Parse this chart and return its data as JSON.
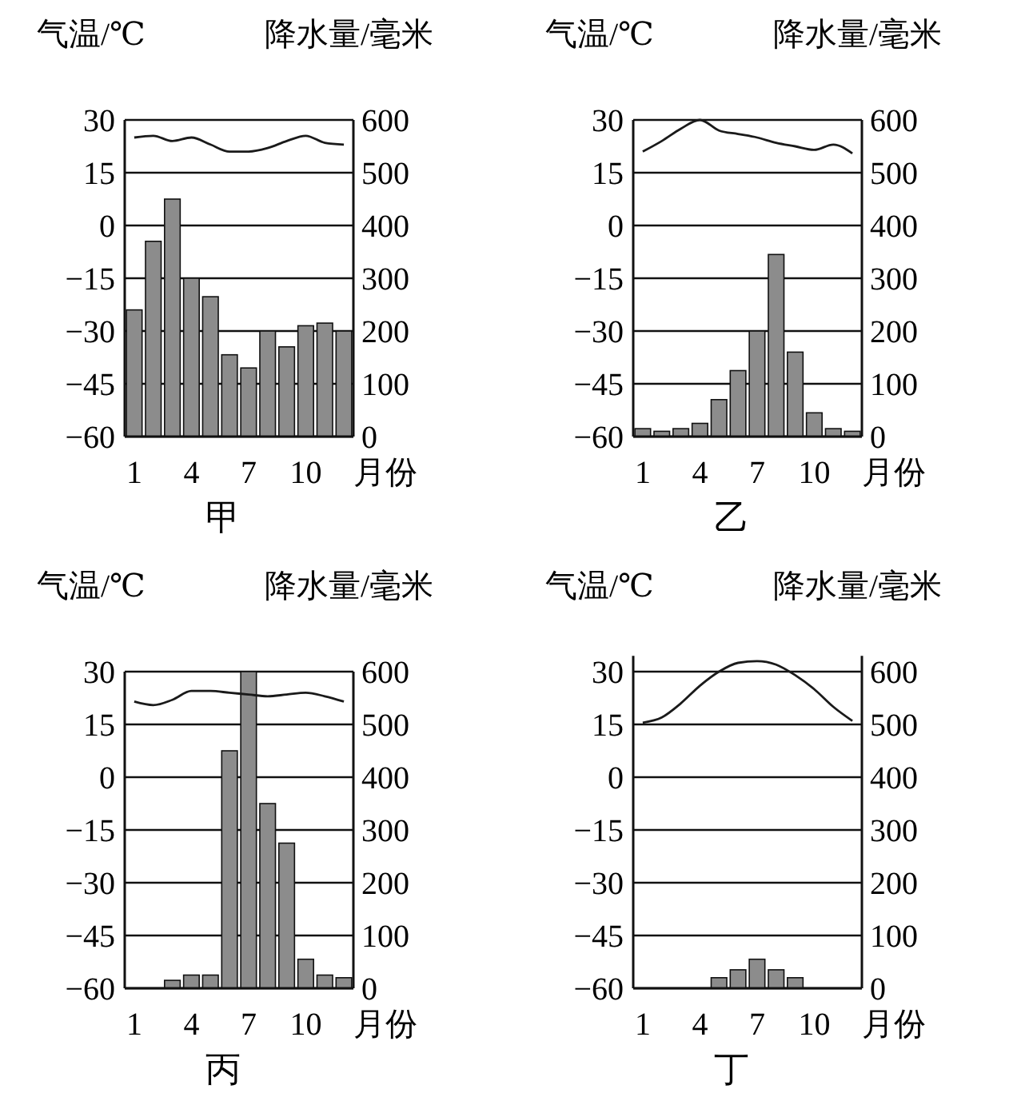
{
  "chart_data": [
    {
      "type": "bar",
      "title": "甲",
      "xlabel": "月份",
      "ylabel": "气温/℃",
      "y2label": "降水量/毫米",
      "categories": [
        "1",
        null,
        null,
        "4",
        null,
        null,
        "7",
        null,
        null,
        "10",
        null,
        null
      ],
      "ylim": [
        -60,
        30
      ],
      "yticks": [
        -60,
        -45,
        -30,
        -15,
        0,
        15,
        30
      ],
      "y2lim": [
        0,
        600
      ],
      "y2ticks": [
        0,
        100,
        200,
        300,
        400,
        500,
        600
      ],
      "grid": "y",
      "legend": false,
      "series": [
        {
          "axis": "y2",
          "color": "#8c8c8c",
          "values": [
            240,
            370,
            450,
            300,
            265,
            155,
            130,
            200,
            170,
            210,
            215,
            200
          ]
        },
        {
          "type": "line",
          "axis": "y",
          "color": "#1a1a1a",
          "values": [
            25,
            25.5,
            24,
            25,
            23,
            21,
            21,
            22,
            24,
            25.5,
            23.5,
            23
          ]
        }
      ]
    },
    {
      "type": "bar",
      "title": "乙",
      "xlabel": "月份",
      "ylabel": "气温/℃",
      "y2label": "降水量/毫米",
      "categories": [
        "1",
        null,
        null,
        "4",
        null,
        null,
        "7",
        null,
        null,
        "10",
        null,
        null
      ],
      "ylim": [
        -60,
        30
      ],
      "yticks": [
        -60,
        -45,
        -30,
        -15,
        0,
        15,
        30
      ],
      "y2lim": [
        0,
        600
      ],
      "y2ticks": [
        0,
        100,
        200,
        300,
        400,
        500,
        600
      ],
      "grid": "y",
      "legend": false,
      "series": [
        {
          "axis": "y2",
          "color": "#8c8c8c",
          "values": [
            15,
            10,
            15,
            25,
            70,
            125,
            200,
            345,
            160,
            45,
            15,
            10
          ]
        },
        {
          "type": "line",
          "axis": "y",
          "color": "#1a1a1a",
          "values": [
            21,
            24,
            27.5,
            30,
            27,
            26,
            25,
            23.5,
            22.5,
            21.5,
            23,
            20.5
          ]
        }
      ]
    },
    {
      "type": "bar",
      "title": "丙",
      "xlabel": "月份",
      "ylabel": "气温/℃",
      "y2label": "降水量/毫米",
      "categories": [
        "1",
        null,
        null,
        "4",
        null,
        null,
        "7",
        null,
        null,
        "10",
        null,
        null
      ],
      "ylim": [
        -60,
        30
      ],
      "yticks": [
        -60,
        -45,
        -30,
        -15,
        0,
        15,
        30
      ],
      "y2lim": [
        0,
        600
      ],
      "y2ticks": [
        0,
        100,
        200,
        300,
        400,
        500,
        600
      ],
      "grid": "y",
      "legend": false,
      "series": [
        {
          "axis": "y2",
          "color": "#8c8c8c",
          "values": [
            0,
            0,
            15,
            25,
            25,
            450,
            600,
            350,
            275,
            55,
            25,
            20
          ]
        },
        {
          "type": "line",
          "axis": "y",
          "color": "#1a1a1a",
          "values": [
            21.5,
            20.5,
            22,
            24.5,
            24.5,
            24,
            23.5,
            23,
            23.5,
            24,
            23,
            21.5
          ]
        }
      ]
    },
    {
      "type": "bar",
      "title": "丁",
      "xlabel": "月份",
      "ylabel": "气温/℃",
      "y2label": "降水量/毫米",
      "categories": [
        "1",
        null,
        null,
        "4",
        null,
        null,
        "7",
        null,
        null,
        "10",
        null,
        null
      ],
      "ylim": [
        -60,
        34.5
      ],
      "yticks": [
        -60,
        -45,
        -30,
        -15,
        0,
        15,
        30
      ],
      "y2lim": [
        0,
        630
      ],
      "y2ticks": [
        0,
        100,
        200,
        300,
        400,
        500,
        600
      ],
      "grid": "y",
      "legend": false,
      "series": [
        {
          "axis": "y2",
          "color": "#8c8c8c",
          "values": [
            0,
            0,
            0,
            0,
            20,
            35,
            55,
            35,
            20,
            0,
            0,
            0
          ]
        },
        {
          "type": "line",
          "axis": "y",
          "color": "#1a1a1a",
          "values": [
            15.5,
            17,
            21,
            26,
            30,
            32.5,
            33,
            32,
            29,
            25,
            20,
            16
          ]
        }
      ]
    }
  ]
}
